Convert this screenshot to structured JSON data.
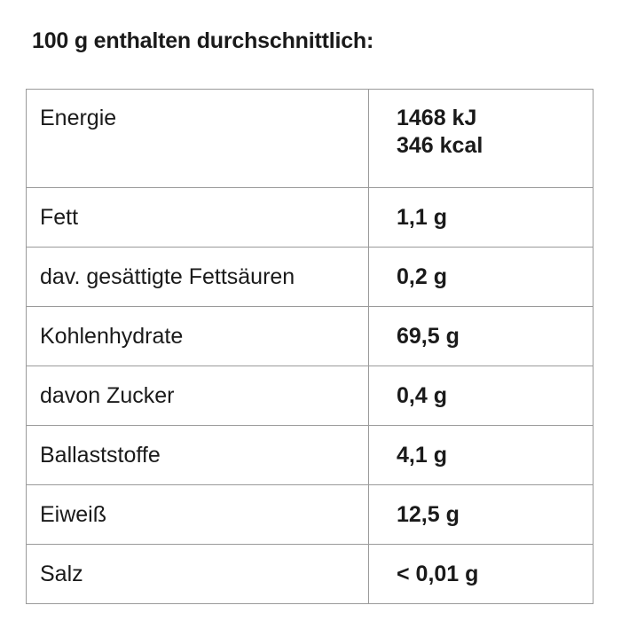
{
  "heading": "100 g enthalten durchschnittlich:",
  "energy": {
    "label": "Energie",
    "kj": "1468 kJ",
    "kcal": "346 kcal"
  },
  "rows": [
    {
      "label": "Fett",
      "value": "1,1 g"
    },
    {
      "label": "dav. gesättigte Fettsäuren",
      "value": "0,2 g"
    },
    {
      "label": "Kohlenhydrate",
      "value": "69,5 g"
    },
    {
      "label": "davon Zucker",
      "value": "0,4 g"
    },
    {
      "label": "Ballaststoffe",
      "value": "4,1 g"
    },
    {
      "label": "Eiweiß",
      "value": "12,5 g"
    },
    {
      "label": "Salz",
      "value": "< 0,01 g"
    }
  ]
}
